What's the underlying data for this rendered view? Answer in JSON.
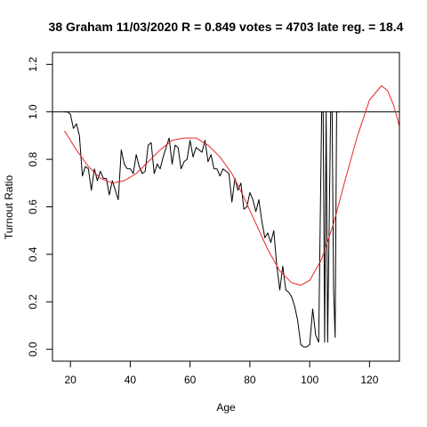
{
  "chart_data": {
    "type": "line",
    "title": "38 Graham 11/03/2020 R = 0.849 votes = 4703 late reg. = 18.4",
    "xlabel": "Age",
    "ylabel": "Turnout Ratio",
    "xlim": [
      14,
      130
    ],
    "ylim": [
      -0.05,
      1.25
    ],
    "xticks": [
      20,
      40,
      60,
      80,
      100,
      120
    ],
    "yticks": [
      0.0,
      0.2,
      0.4,
      0.6,
      0.8,
      1.0,
      1.2
    ],
    "xtick_labels": [
      "20",
      "40",
      "60",
      "80",
      "100",
      "120"
    ],
    "ytick_labels": [
      "0.0",
      "0.2",
      "0.4",
      "0.6",
      "0.8",
      "1.0",
      "1.2"
    ],
    "reference_line": {
      "y": 1.0,
      "color": "#000000"
    },
    "grid": false,
    "series": [
      {
        "style": "observed",
        "color": "#000000",
        "x": [
          18,
          19,
          20,
          21,
          22,
          23,
          24,
          25,
          26,
          27,
          28,
          29,
          30,
          31,
          32,
          33,
          34,
          35,
          36,
          37,
          38,
          39,
          40,
          41,
          42,
          43,
          44,
          45,
          46,
          47,
          48,
          49,
          50,
          51,
          52,
          53,
          54,
          55,
          56,
          57,
          58,
          59,
          60,
          61,
          62,
          63,
          64,
          65,
          66,
          67,
          68,
          69,
          70,
          71,
          72,
          73,
          74,
          75,
          76,
          77,
          78,
          79,
          80,
          81,
          82,
          83,
          84,
          85,
          86,
          87,
          88,
          89,
          90,
          91,
          92,
          93,
          94,
          95,
          96,
          97,
          98,
          99,
          100,
          101,
          102,
          103,
          104,
          104.5,
          105,
          105.5,
          106,
          107,
          107.5,
          108,
          108.5,
          109,
          109.5,
          110
        ],
        "y": [
          1.0,
          1.0,
          0.99,
          0.93,
          0.95,
          0.9,
          0.73,
          0.77,
          0.76,
          0.67,
          0.76,
          0.71,
          0.75,
          0.72,
          0.72,
          0.65,
          0.71,
          0.67,
          0.63,
          0.84,
          0.78,
          0.76,
          0.76,
          0.74,
          0.82,
          0.77,
          0.74,
          0.75,
          0.86,
          0.87,
          0.74,
          0.78,
          0.76,
          0.81,
          0.85,
          0.89,
          0.78,
          0.86,
          0.85,
          0.76,
          0.79,
          0.8,
          0.88,
          0.81,
          0.85,
          0.84,
          0.83,
          0.88,
          0.79,
          0.82,
          0.76,
          0.76,
          0.73,
          0.76,
          0.75,
          0.74,
          0.62,
          0.72,
          0.67,
          0.7,
          0.59,
          0.6,
          0.66,
          0.63,
          0.58,
          0.63,
          0.54,
          0.47,
          0.49,
          0.45,
          0.5,
          0.35,
          0.25,
          0.35,
          0.25,
          0.24,
          0.22,
          0.18,
          0.12,
          0.02,
          0.01,
          0.01,
          0.02,
          0.17,
          0.06,
          0.03,
          1.0,
          1.0,
          0.03,
          1.0,
          0.03,
          1.0,
          1.0,
          0.25,
          0.05,
          1.0,
          1.0,
          1.0
        ]
      },
      {
        "style": "fitted",
        "color": "#e8252a",
        "x": [
          18,
          22,
          26,
          30,
          34,
          38,
          42,
          46,
          50,
          54,
          58,
          62,
          66,
          70,
          74,
          78,
          82,
          86,
          90,
          94,
          97,
          100,
          104,
          108,
          112,
          116,
          120,
          124,
          126,
          128,
          130
        ],
        "y": [
          0.92,
          0.84,
          0.77,
          0.72,
          0.7,
          0.71,
          0.74,
          0.79,
          0.84,
          0.88,
          0.89,
          0.89,
          0.86,
          0.81,
          0.74,
          0.64,
          0.53,
          0.42,
          0.33,
          0.28,
          0.27,
          0.29,
          0.38,
          0.53,
          0.72,
          0.9,
          1.05,
          1.11,
          1.09,
          1.03,
          0.94
        ]
      }
    ]
  }
}
